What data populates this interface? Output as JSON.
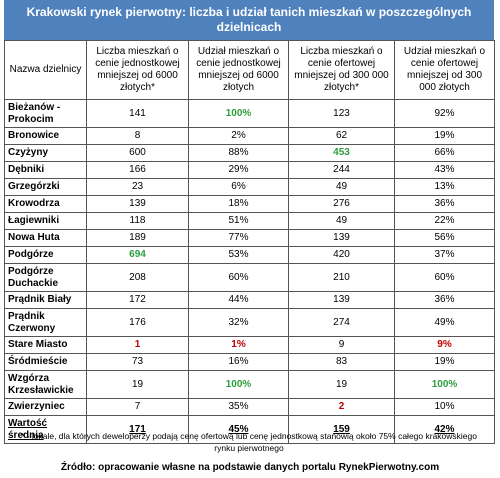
{
  "header": {
    "title": "Krakowski rynek pierwotny: liczba i udział tanich mieszkań w poszczególnych dzielnicach"
  },
  "table": {
    "columns": [
      "Nazwa dzielnicy",
      "Liczba mieszkań o cenie jednostkowej mniejszej od 6000 złotych*",
      "Udział mieszkań o cenie jednostkowej mniejszej od 6000 złotych",
      "Liczba mieszkań o cenie ofertowej mniejszej od 300 000 złotych*",
      "Udział mieszkań o cenie ofertowej mniejszej od 300 000 złotych"
    ],
    "rows": [
      [
        "Bieżanów - Prokocim",
        "141",
        "100%",
        "123",
        "92%"
      ],
      [
        "Bronowice",
        "8",
        "2%",
        "62",
        "19%"
      ],
      [
        "Czyżyny",
        "600",
        "88%",
        "453",
        "66%"
      ],
      [
        "Dębniki",
        "166",
        "29%",
        "244",
        "43%"
      ],
      [
        "Grzegórzki",
        "23",
        "6%",
        "49",
        "13%"
      ],
      [
        "Krowodrza",
        "139",
        "18%",
        "276",
        "36%"
      ],
      [
        "Łagiewniki",
        "118",
        "51%",
        "49",
        "22%"
      ],
      [
        "Nowa Huta",
        "189",
        "77%",
        "139",
        "56%"
      ],
      [
        "Podgórze",
        "694",
        "53%",
        "420",
        "37%"
      ],
      [
        "Podgórze Duchackie",
        "208",
        "60%",
        "210",
        "60%"
      ],
      [
        "Prądnik Biały",
        "172",
        "44%",
        "139",
        "36%"
      ],
      [
        "Prądnik Czerwony",
        "176",
        "32%",
        "274",
        "49%"
      ],
      [
        "Stare Miasto",
        "1",
        "1%",
        "9",
        "9%"
      ],
      [
        "Śródmieście",
        "73",
        "16%",
        "83",
        "19%"
      ],
      [
        "Wzgórza Krzesławickie",
        "19",
        "100%",
        "19",
        "100%"
      ],
      [
        "Zwierzyniec",
        "7",
        "35%",
        "2",
        "10%"
      ],
      [
        "Wartość średnia",
        "171",
        "45%",
        "159",
        "42%"
      ]
    ]
  },
  "footnote": "* - lokale, dla których deweloperzy podają cenę ofertową lub cenę jednostkową stanowią około 75% całego krakowskiego rynku pierwotnego",
  "source": "Źródło: opracowanie własne na podstawie danych portalu RynekPierwotny.com"
}
